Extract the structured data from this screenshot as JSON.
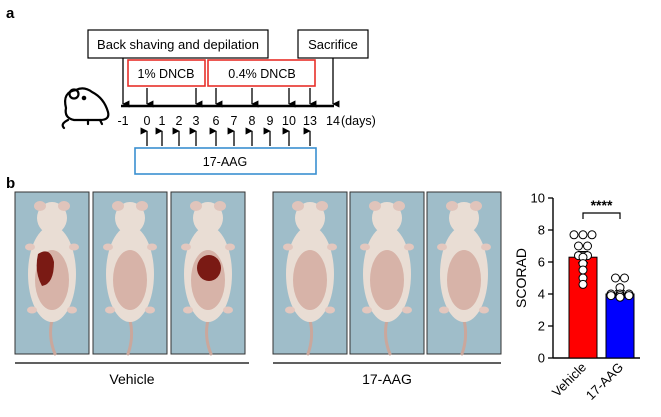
{
  "panel_a": {
    "letter": "a",
    "box_shaving": "Back shaving and depilation",
    "box_sacrifice": "Sacrifice",
    "box_dncb_1": "1% DNCB",
    "box_dncb_04": "0.4% DNCB",
    "box_treatment": "17-AAG",
    "day_labels": [
      "-1",
      "0",
      "1",
      "2",
      "3",
      "6",
      "7",
      "8",
      "9",
      "10",
      "13",
      "14"
    ],
    "days_unit": "(days)",
    "mouse_icon": "mouse-icon",
    "colors": {
      "dncb_box": "#e8302a",
      "treatment_box": "#3a8fd0"
    }
  },
  "panel_b": {
    "letter": "b",
    "group_vehicle_label": "Vehicle",
    "group_treated_label": "17-AAG",
    "photo_icon": "mouse-photo-icon",
    "colors": {
      "photo_bg": "#9fbdc9",
      "mouse_fur": "#e9ddd4",
      "lesion": "#7a1a14"
    }
  },
  "chart_data": {
    "type": "bar",
    "categories": [
      "Vehicle",
      "17-AAG"
    ],
    "values": [
      6.3,
      4.0
    ],
    "errors": [
      0.35,
      0.2
    ],
    "points": [
      [
        7.7,
        7.7,
        7.7,
        7.0,
        7.0,
        6.4,
        6.4,
        6.3,
        5.9,
        5.5,
        5.0,
        4.6
      ],
      [
        5.0,
        5.0,
        4.4,
        4.0,
        4.0,
        4.0,
        3.9,
        3.9,
        3.9,
        3.8
      ]
    ],
    "colors": [
      "#ff0000",
      "#0000ff"
    ],
    "ylabel": "SCORAD",
    "ylim": [
      0,
      10
    ],
    "yticks": [
      0,
      2,
      4,
      6,
      8,
      10
    ],
    "significance": "****"
  }
}
